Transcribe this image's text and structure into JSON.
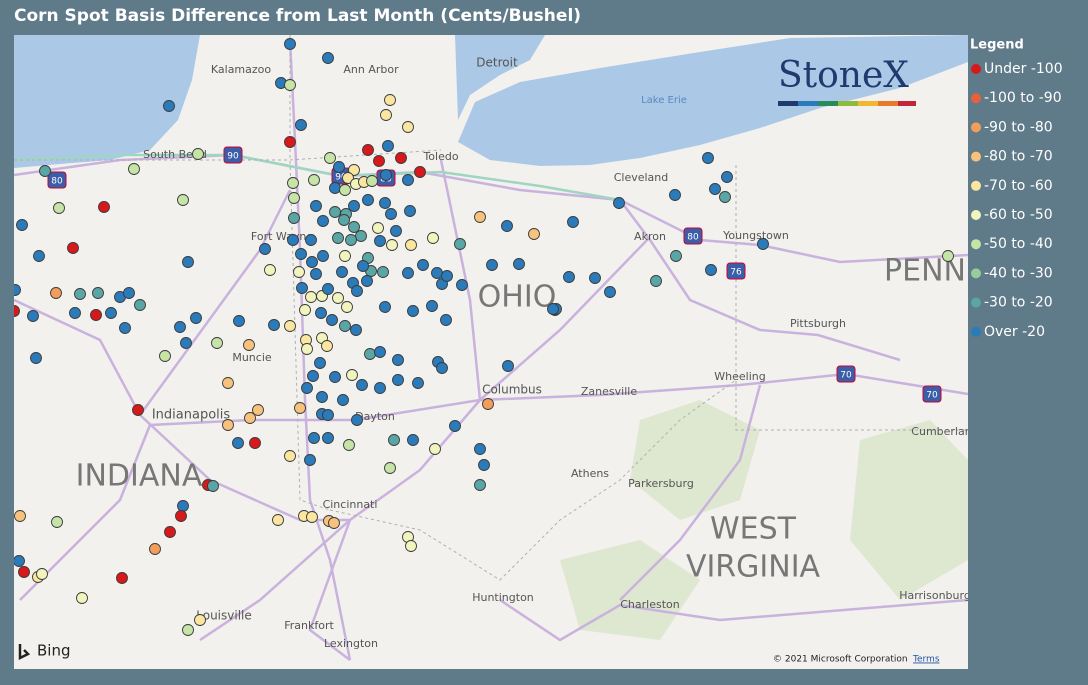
{
  "title": "Corn Spot Basis Difference from Last Month (Cents/Bushel)",
  "legend": {
    "title": "Legend",
    "items": [
      {
        "name": "Under -100",
        "color": "#d7191c"
      },
      {
        "name": "-100 to -90",
        "color": "#e8613c"
      },
      {
        "name": "-90 to -80",
        "color": "#f29d5b"
      },
      {
        "name": "-80 to -70",
        "color": "#f7c27e"
      },
      {
        "name": "-70 to -60",
        "color": "#fbe6a0"
      },
      {
        "name": "-60 to -50",
        "color": "#f1f4bd"
      },
      {
        "name": "-50 to -40",
        "color": "#c5e4a6"
      },
      {
        "name": "-40 to -30",
        "color": "#97cd9a"
      },
      {
        "name": "-30 to -20",
        "color": "#5aa6a6"
      },
      {
        "name": "Over -20",
        "color": "#2b7bba"
      }
    ]
  },
  "map": {
    "labels": [
      "Kalamazoo",
      "Ann Arbor",
      "Detroit",
      "Lake Erie",
      "South Bend",
      "Toledo",
      "Cleveland",
      "Fort Wayne",
      "Akron",
      "Youngstown",
      "OHIO",
      "PENN",
      "Pittsburgh",
      "Muncie",
      "Wheeling",
      "Columbus",
      "Zanesville",
      "Indianapolis",
      "Dayton",
      "Cumberland",
      "INDIANA",
      "Athens",
      "Parkersburg",
      "Cincinnati",
      "WEST",
      "VIRGINIA",
      "Huntington",
      "Charleston",
      "Harrisonburg",
      "Louisville",
      "Frankfort",
      "Lexington"
    ],
    "highway_shields": [
      "90",
      "80",
      "90",
      "80",
      "80",
      "76",
      "70",
      "70"
    ],
    "logo": "StoneX",
    "attribution": "Bing",
    "copyright": "© 2021 Microsoft Corporation",
    "terms": "Terms"
  }
}
